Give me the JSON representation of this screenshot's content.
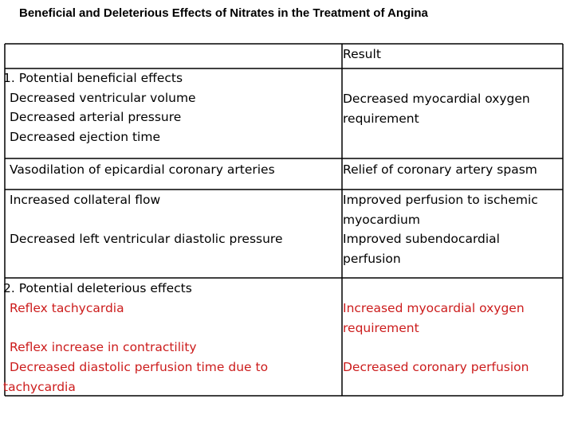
{
  "title": "Beneficial and Deleterious Effects of Nitrates in the Treatment of Angina",
  "header": {
    "result": "Result"
  },
  "colors": {
    "text": "#000000",
    "deleterious": "#cc1c1c",
    "border": "#000000"
  },
  "rows": [
    {
      "left": [
        "1. Potential beneficial effects",
        "Decreased ventricular volume",
        "Decreased arterial pressure",
        "Decreased ejection time"
      ],
      "right": [
        "Decreased myocardial oxygen",
        "requirement"
      ]
    },
    {
      "left": [
        "Vasodilation of epicardial coronary arteries"
      ],
      "right": [
        "Relief of coronary artery spasm"
      ]
    },
    {
      "left": [
        "Increased collateral flow",
        "Decreased left ventricular diastolic pressure"
      ],
      "right": [
        "Improved perfusion to ischemic",
        "myocardium",
        "Improved subendocardial",
        "perfusion"
      ]
    },
    {
      "left": [
        "2. Potential deleterious effects",
        "Reflex tachycardia",
        "Reflex increase in contractility",
        "Decreased diastolic perfusion time due to",
        "tachycardia"
      ],
      "right": [
        "Increased myocardial oxygen",
        "requirement",
        "Decreased coronary perfusion"
      ]
    }
  ]
}
